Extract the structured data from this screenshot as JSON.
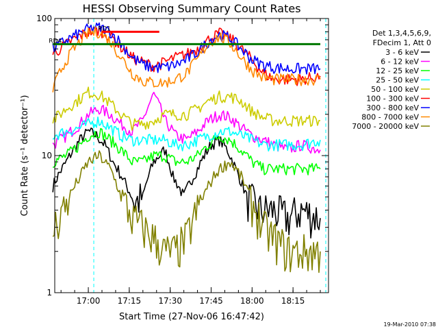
{
  "chart_data": {
    "type": "line",
    "title": "HESSI Observing Summary Count Rates",
    "xlabel": "Start Time (27-Nov-06 16:47:42)",
    "ylabel": "Count Rate (s⁻¹ detector⁻¹)",
    "yscale": "log",
    "ylim": [
      1,
      100
    ],
    "xlim_minutes_after_16_47_42": [
      0,
      100.3
    ],
    "x_ticks": [
      "17:00",
      "17:15",
      "17:30",
      "17:45",
      "18:00",
      "18:15"
    ],
    "y_ticks": [
      "1",
      "10",
      "100"
    ],
    "legend_header": [
      "Det 1,3,4,5,6,9,",
      "FDecim 1, Att 0"
    ],
    "legend_position": "right",
    "series": [
      {
        "name": "3 - 6 keV",
        "color": "#000000",
        "x": [
          "16:47",
          "16:52",
          "16:57",
          "17:00",
          "17:03",
          "17:06",
          "17:09",
          "17:14",
          "17:17",
          "17:20",
          "17:24",
          "17:28",
          "17:31",
          "17:35",
          "17:40",
          "17:45",
          "17:48",
          "17:51",
          "17:54",
          "17:58",
          "18:03",
          "18:08",
          "18:13",
          "18:18",
          "18:25"
        ],
        "values": [
          6,
          9,
          13,
          15,
          14,
          12,
          9,
          6,
          4.5,
          5,
          9,
          11,
          7,
          5,
          8,
          12,
          13,
          11,
          8,
          5,
          4,
          4,
          3.5,
          4,
          3.5
        ]
      },
      {
        "name": "6 - 12 keV",
        "color": "#ff00ff",
        "x": [
          "16:47",
          "16:52",
          "16:57",
          "17:00",
          "17:04",
          "17:08",
          "17:12",
          "17:16",
          "17:20",
          "17:24",
          "17:28",
          "17:32",
          "17:36",
          "17:40",
          "17:44",
          "17:48",
          "17:52",
          "17:56",
          "18:00",
          "18:04",
          "18:08",
          "18:13",
          "18:18",
          "18:25"
        ],
        "values": [
          12,
          14,
          17,
          20,
          22,
          20,
          17,
          15,
          18,
          28,
          18,
          14,
          13,
          15,
          18,
          20,
          19,
          16,
          14,
          13,
          12,
          11,
          12,
          11
        ]
      },
      {
        "name": "12 - 25 keV",
        "color": "#00ff00",
        "x": [
          "16:47",
          "16:52",
          "16:57",
          "17:00",
          "17:04",
          "17:08",
          "17:12",
          "17:16",
          "17:20",
          "17:24",
          "17:28",
          "17:32",
          "17:36",
          "17:40",
          "17:44",
          "17:48",
          "17:52",
          "17:56",
          "18:00",
          "18:04",
          "18:08",
          "18:13",
          "18:18",
          "18:25"
        ],
        "values": [
          9,
          10,
          12,
          14,
          15,
          13,
          11,
          9,
          9,
          10,
          10,
          9,
          9,
          10,
          12,
          14,
          13,
          11,
          9,
          8,
          8,
          8,
          8,
          8
        ]
      },
      {
        "name": "25 - 50 keV",
        "color": "#00ffff",
        "x": [
          "16:47",
          "16:52",
          "16:57",
          "17:00",
          "17:04",
          "17:08",
          "17:12",
          "17:16",
          "17:20",
          "17:24",
          "17:28",
          "17:32",
          "17:36",
          "17:40",
          "17:44",
          "17:48",
          "17:52",
          "17:56",
          "18:00",
          "18:04",
          "18:08",
          "18:13",
          "18:18",
          "18:25"
        ],
        "values": [
          14,
          15,
          16,
          17,
          18,
          16,
          14,
          13,
          13,
          13,
          13,
          12,
          12,
          13,
          14,
          15,
          15,
          14,
          13,
          12,
          12,
          12,
          12,
          13
        ]
      },
      {
        "name": "50 - 100 keV",
        "color": "#cccc00",
        "x": [
          "16:47",
          "16:52",
          "16:57",
          "17:00",
          "17:04",
          "17:08",
          "17:12",
          "17:16",
          "17:20",
          "17:24",
          "17:28",
          "17:32",
          "17:36",
          "17:40",
          "17:44",
          "17:48",
          "17:52",
          "17:56",
          "18:00",
          "18:04",
          "18:08",
          "18:13",
          "18:18",
          "18:25"
        ],
        "values": [
          18,
          22,
          26,
          29,
          28,
          24,
          20,
          17,
          17,
          18,
          20,
          20,
          20,
          22,
          25,
          27,
          27,
          25,
          21,
          19,
          18,
          18,
          18,
          18
        ]
      },
      {
        "name": "100 - 300 keV",
        "color": "#ff0000",
        "x": [
          "16:47",
          "16:52",
          "16:57",
          "17:00",
          "17:04",
          "17:08",
          "17:12",
          "17:16",
          "17:20",
          "17:24",
          "17:28",
          "17:32",
          "17:36",
          "17:40",
          "17:44",
          "17:48",
          "17:52",
          "17:56",
          "18:00",
          "18:04",
          "18:08",
          "18:13",
          "18:18",
          "18:25"
        ],
        "values": [
          55,
          65,
          75,
          80,
          82,
          75,
          62,
          52,
          48,
          45,
          48,
          52,
          55,
          60,
          70,
          78,
          72,
          60,
          50,
          40,
          36,
          36,
          36,
          38
        ]
      },
      {
        "name": "300 - 800 keV",
        "color": "#0000ff",
        "x": [
          "16:47",
          "16:52",
          "16:57",
          "17:00",
          "17:04",
          "17:08",
          "17:12",
          "17:16",
          "17:20",
          "17:24",
          "17:28",
          "17:32",
          "17:36",
          "17:40",
          "17:44",
          "17:48",
          "17:52",
          "17:56",
          "18:00",
          "18:04",
          "18:08",
          "18:13",
          "18:18",
          "18:25"
        ],
        "values": [
          60,
          70,
          78,
          84,
          86,
          80,
          66,
          52,
          46,
          44,
          44,
          46,
          50,
          57,
          68,
          76,
          72,
          60,
          50,
          46,
          44,
          43,
          43,
          43
        ]
      },
      {
        "name": "800 - 7000 keV",
        "color": "#ff8800",
        "x": [
          "16:47",
          "16:52",
          "16:57",
          "17:00",
          "17:04",
          "17:08",
          "17:12",
          "17:16",
          "17:20",
          "17:24",
          "17:28",
          "17:32",
          "17:36",
          "17:40",
          "17:44",
          "17:48",
          "17:52",
          "17:56",
          "18:00",
          "18:04",
          "18:08",
          "18:13",
          "18:18",
          "18:25"
        ],
        "values": [
          30,
          50,
          68,
          78,
          80,
          68,
          52,
          40,
          35,
          34,
          34,
          36,
          40,
          50,
          66,
          74,
          66,
          52,
          42,
          37,
          36,
          36,
          36,
          36
        ]
      },
      {
        "name": "7000 - 20000 keV",
        "color": "#808000",
        "x": [
          "16:47",
          "16:52",
          "16:57",
          "17:00",
          "17:04",
          "17:08",
          "17:12",
          "17:16",
          "17:20",
          "17:24",
          "17:28",
          "17:32",
          "17:36",
          "17:40",
          "17:44",
          "17:48",
          "17:52",
          "17:56",
          "18:00",
          "18:04",
          "18:08",
          "18:13",
          "18:18",
          "18:25"
        ],
        "values": [
          2.8,
          4.5,
          7,
          9,
          10,
          8,
          5,
          3.5,
          3,
          2.5,
          2,
          2,
          2.5,
          4,
          6,
          8,
          9,
          7,
          4.5,
          3,
          2.5,
          2,
          2,
          2
        ]
      }
    ],
    "overlays": [
      {
        "label": "RD4",
        "color": "#007700",
        "x_start": "16:47",
        "x_end": "18:25",
        "value": 65
      },
      {
        "label": "RD1",
        "color": "#ff0000",
        "x_start": "17:05",
        "x_end": "17:26",
        "value": 80
      }
    ],
    "markers": [
      {
        "label": "",
        "color": "#00ffff",
        "x": "17:02"
      },
      {
        "label": "",
        "color": "#00ffff",
        "x": "18:27"
      }
    ]
  },
  "footer": {
    "timestamp": "19-Mar-2010 07:38"
  }
}
